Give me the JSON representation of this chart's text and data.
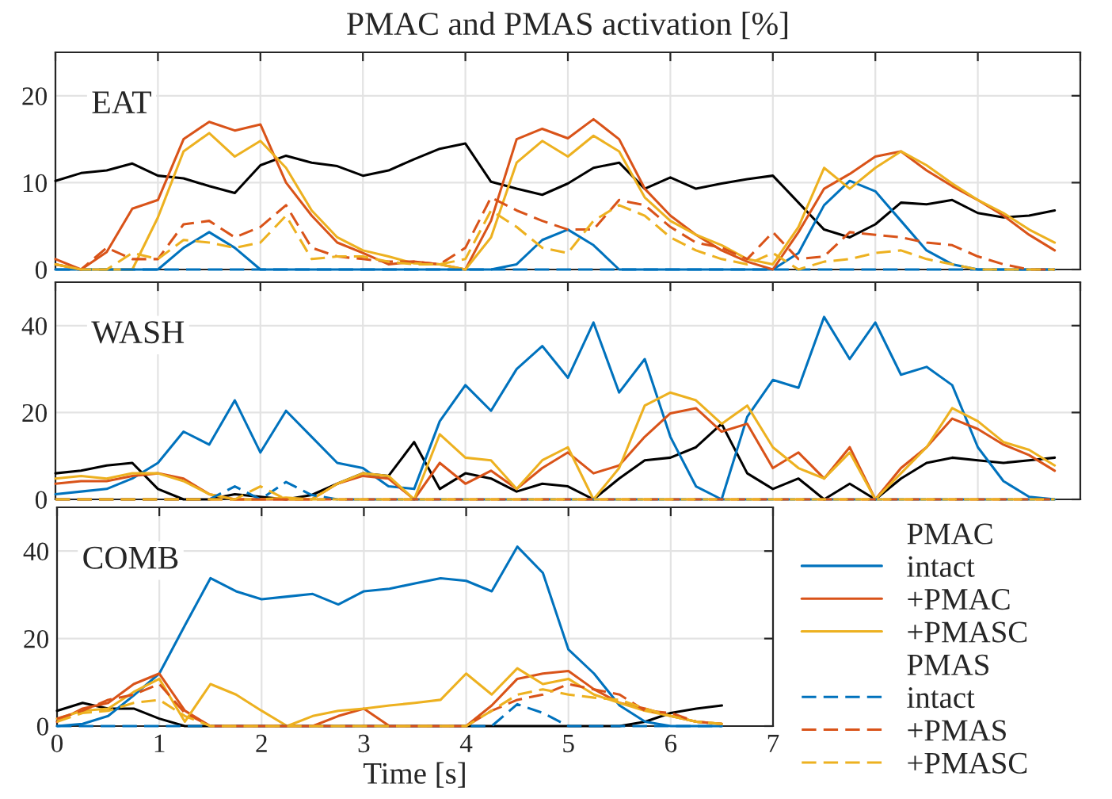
{
  "chart_data": [
    {
      "type": "line",
      "title": "PMAC and PMAS activation [%]",
      "annotations": [
        "EAT"
      ],
      "grid": true,
      "tick_labels": "y",
      "xlim": [
        0,
        10
      ],
      "xticks": [
        0,
        1,
        2,
        3,
        4,
        5,
        6,
        7,
        8,
        9,
        10
      ],
      "ylim": [
        0,
        25
      ],
      "yticks": [
        0,
        10,
        20
      ],
      "x": [
        0,
        0.25,
        0.5,
        0.75,
        1,
        1.25,
        1.5,
        1.75,
        2,
        2.25,
        2.5,
        2.75,
        3,
        3.25,
        3.5,
        3.75,
        4,
        4.25,
        4.5,
        4.75,
        5,
        5.25,
        5.5,
        5.75,
        6,
        6.25,
        6.5,
        6.75,
        7,
        7.25,
        7.5,
        7.75,
        8,
        8.25,
        8.5,
        8.75,
        9,
        9.25,
        9.5,
        9.75
      ],
      "series": [
        {
          "color": "#000000",
          "line_style": "solid",
          "values": [
            10.2,
            11.1,
            11.4,
            12.2,
            10.8,
            10.5,
            9.6,
            8.8,
            12,
            13.1,
            12.3,
            11.9,
            10.8,
            11.4,
            12.7,
            13.9,
            14.5,
            10.1,
            9.3,
            8.6,
            9.9,
            11.7,
            12.3,
            9.3,
            10.6,
            9.3,
            9.9,
            10.4,
            10.8,
            7.7,
            4.6,
            3.7,
            5.2,
            7.7,
            7.5,
            8,
            6.5,
            6,
            6.2,
            6.8
          ]
        },
        {
          "color": "#0072bd",
          "line_style": "solid",
          "values": [
            0,
            0,
            0,
            0,
            0,
            2.5,
            4.3,
            2.5,
            0,
            0,
            0,
            0,
            0,
            0,
            0,
            0,
            0,
            0,
            0.6,
            3.4,
            4.6,
            2.8,
            0,
            0,
            0,
            0,
            0,
            0,
            0,
            1.9,
            7.4,
            10.2,
            9,
            5.6,
            2.2,
            0.6,
            0,
            0,
            0,
            0
          ]
        },
        {
          "color": "#d95319",
          "line_style": "solid",
          "values": [
            1.2,
            0,
            2,
            7,
            8,
            15,
            17,
            16,
            16.7,
            10,
            6.2,
            3.1,
            1.9,
            0.6,
            0.9,
            0.6,
            0,
            5.6,
            15,
            16.2,
            15.1,
            17.3,
            15,
            9.3,
            6.2,
            4,
            2.2,
            0.9,
            0,
            4.3,
            9.3,
            11,
            13,
            13.6,
            11.4,
            9.6,
            8,
            6.2,
            4,
            2.2
          ]
        },
        {
          "color": "#edb120",
          "line_style": "solid",
          "values": [
            0.6,
            0,
            0,
            0,
            6,
            13.6,
            15.7,
            13,
            14.8,
            11.7,
            6.8,
            3.7,
            2.2,
            1.5,
            0.7,
            0.6,
            0,
            3.7,
            12.3,
            14.8,
            13,
            15.4,
            13.6,
            8.3,
            5.6,
            4,
            2.8,
            1.2,
            0.6,
            4.9,
            11.7,
            9.3,
            11.7,
            13.6,
            12,
            9.9,
            8,
            6.5,
            4.6,
            3.1
          ]
        },
        {
          "color": "#0072bd",
          "line_style": "dashed",
          "values": [
            0,
            0,
            0,
            0,
            0,
            0,
            0,
            0,
            0,
            0,
            0,
            0,
            0,
            0,
            0,
            0,
            0,
            0,
            0,
            0,
            0,
            0,
            0,
            0,
            0,
            0,
            0,
            0,
            0,
            0,
            0,
            0,
            0,
            0,
            0,
            0,
            0,
            0,
            0,
            0
          ]
        },
        {
          "color": "#d95319",
          "line_style": "dashed",
          "values": [
            0.6,
            0,
            2.5,
            1.2,
            1.2,
            5.2,
            5.6,
            3.7,
            4.9,
            7.4,
            2.5,
            1.5,
            1.2,
            0.9,
            0.9,
            0.6,
            2.5,
            8.3,
            6.8,
            5.6,
            4.6,
            4.6,
            8,
            7.4,
            4.9,
            3.1,
            2.5,
            1.2,
            4.3,
            1.2,
            1.5,
            4.3,
            4,
            3.7,
            3.1,
            2.8,
            1.5,
            0.6,
            0,
            0
          ]
        },
        {
          "color": "#edb120",
          "line_style": "dashed",
          "values": [
            0.6,
            0,
            0,
            1.9,
            1.2,
            3.4,
            3.1,
            2.5,
            3.1,
            6.2,
            1.2,
            1.5,
            1.5,
            0.9,
            0.6,
            0.6,
            1.2,
            6.8,
            4.9,
            2.5,
            1.9,
            5.6,
            7.4,
            6.2,
            3.7,
            2.2,
            1.2,
            0.6,
            1.9,
            0,
            0.9,
            1.2,
            1.9,
            2.2,
            1.2,
            0.6,
            0,
            0,
            0,
            0
          ]
        }
      ]
    },
    {
      "type": "line",
      "annotations": [
        "WASH"
      ],
      "grid": true,
      "tick_labels": "y",
      "xlim": [
        0,
        10
      ],
      "xticks": [
        0,
        1,
        2,
        3,
        4,
        5,
        6,
        7,
        8,
        9,
        10
      ],
      "ylim": [
        0,
        50
      ],
      "yticks": [
        0,
        20,
        40
      ],
      "x": [
        0,
        0.25,
        0.5,
        0.75,
        1,
        1.25,
        1.5,
        1.75,
        2,
        2.25,
        2.5,
        2.75,
        3,
        3.25,
        3.5,
        3.75,
        4,
        4.25,
        4.5,
        4.75,
        5,
        5.25,
        5.5,
        5.75,
        6,
        6.25,
        6.5,
        6.75,
        7,
        7.25,
        7.5,
        7.75,
        8,
        8.25,
        8.5,
        8.75,
        9,
        9.25,
        9.5,
        9.75
      ],
      "series": [
        {
          "color": "#000000",
          "line_style": "solid",
          "values": [
            6,
            6.6,
            7.8,
            8.4,
            2.4,
            0,
            0,
            1.2,
            0.6,
            0,
            1,
            3.6,
            6,
            5.4,
            13.2,
            2.4,
            6,
            4.8,
            1.8,
            3.6,
            3,
            0,
            4.8,
            9,
            9.6,
            12,
            17.4,
            6,
            2.4,
            4.8,
            0,
            3.6,
            0,
            4.8,
            8.4,
            9.6,
            9,
            8.4,
            9,
            9.6
          ]
        },
        {
          "color": "#0072bd",
          "line_style": "solid",
          "values": [
            1.2,
            1.8,
            2.4,
            4.8,
            8.4,
            15.6,
            12.6,
            22.8,
            10.8,
            20.4,
            14.4,
            8.4,
            7.2,
            3,
            2.4,
            18,
            26.3,
            20.4,
            30,
            35.3,
            28,
            40.7,
            24.6,
            32.3,
            14.4,
            3,
            0,
            19,
            27.5,
            25.7,
            42,
            32.3,
            40.7,
            28.7,
            30.5,
            26.3,
            12,
            4.2,
            0.6,
            0
          ]
        },
        {
          "color": "#d95319",
          "line_style": "solid",
          "values": [
            3.6,
            4.2,
            4.2,
            5.4,
            6,
            4.8,
            1.2,
            0,
            0,
            0,
            0,
            3.6,
            5.4,
            4.8,
            0,
            8.4,
            3.6,
            6.6,
            2.4,
            7.2,
            10.8,
            6,
            7.8,
            14.4,
            19.8,
            21,
            15.6,
            17.4,
            7.2,
            10.8,
            4.8,
            12,
            0,
            7.2,
            12,
            18.6,
            16.2,
            12.6,
            10.2,
            6.6
          ]
        },
        {
          "color": "#edb120",
          "line_style": "solid",
          "values": [
            4.8,
            5.4,
            4.8,
            6,
            6,
            4.2,
            1.2,
            0,
            0,
            0.4,
            0,
            3.6,
            6,
            5.4,
            0,
            15,
            9.6,
            9,
            2.4,
            9,
            12,
            0,
            7.2,
            21.6,
            24.6,
            22.8,
            17.4,
            21.6,
            12,
            7.2,
            4.8,
            10.8,
            0,
            6,
            12,
            21,
            18,
            13.2,
            11.4,
            7.8
          ]
        },
        {
          "color": "#0072bd",
          "line_style": "dashed",
          "values": [
            0,
            0,
            0,
            0,
            0,
            0,
            0,
            3,
            0,
            4,
            1,
            0,
            0,
            0,
            0,
            0,
            0,
            0,
            0,
            0,
            0,
            0,
            0,
            0,
            0,
            0,
            0,
            0,
            0,
            0,
            0,
            0,
            0,
            0,
            0,
            0,
            0,
            0,
            0,
            0
          ]
        },
        {
          "color": "#d95319",
          "line_style": "dashed",
          "values": [
            0,
            0,
            0,
            0,
            0,
            0,
            0,
            0,
            0,
            0,
            0,
            0,
            0,
            0,
            0,
            0,
            0,
            0,
            0,
            0,
            0,
            0,
            0,
            0,
            0,
            0,
            0,
            0,
            0,
            0,
            0,
            0,
            0,
            0,
            0,
            0,
            0,
            0,
            0,
            0
          ]
        },
        {
          "color": "#edb120",
          "line_style": "dashed",
          "values": [
            0,
            0,
            0,
            0,
            0,
            0,
            0,
            0,
            3,
            0,
            0,
            0,
            0,
            0,
            0,
            0,
            0,
            0,
            0,
            0,
            0,
            0,
            0,
            0,
            0,
            0,
            0,
            0,
            0,
            0,
            0,
            0,
            0,
            0,
            0,
            0,
            0,
            0,
            0,
            0
          ]
        }
      ]
    },
    {
      "type": "line",
      "annotations": [
        "COMB",
        "PMAC",
        "PMAS"
      ],
      "grid": true,
      "legend": "right",
      "xlabel": "Time [s]",
      "xlim": [
        0,
        7
      ],
      "xticks": [
        0,
        1,
        2,
        3,
        4,
        5,
        6,
        7
      ],
      "ylim": [
        0,
        50
      ],
      "yticks": [
        0,
        20,
        40
      ],
      "x": [
        0,
        0.25,
        0.5,
        0.75,
        1,
        1.25,
        1.5,
        1.75,
        2,
        2.25,
        2.5,
        2.75,
        3,
        3.25,
        3.5,
        3.75,
        4,
        4.25,
        4.5,
        4.75,
        5,
        5.25,
        5.5,
        5.75,
        6,
        6.25,
        6.5
      ],
      "series": [
        {
          "color": "#000000",
          "line_style": "solid",
          "values": [
            3.5,
            5.3,
            4,
            4,
            1.7,
            0,
            0,
            0,
            0,
            0,
            0,
            0,
            0,
            0,
            0,
            0,
            0,
            0,
            0,
            0,
            0,
            0,
            0,
            1,
            3,
            4,
            4.7
          ]
        },
        {
          "name": "intact",
          "color": "#0072bd",
          "line_style": "solid",
          "values": [
            0,
            0.5,
            2.3,
            7,
            12,
            23,
            33.8,
            30.8,
            29,
            29.6,
            30.2,
            27.8,
            30.8,
            31.4,
            32.6,
            33.8,
            33.2,
            30.8,
            41,
            35,
            17.5,
            12,
            4.7,
            1,
            0,
            0,
            0
          ]
        },
        {
          "name": "+PMAC",
          "color": "#d95319",
          "line_style": "solid",
          "values": [
            1,
            4,
            5.3,
            9.6,
            12,
            3.5,
            0,
            0,
            0,
            0,
            0,
            2.3,
            4,
            0,
            0,
            0,
            0,
            4.7,
            10.8,
            12,
            12.6,
            8.4,
            5.3,
            4,
            2.3,
            1,
            0.5
          ]
        },
        {
          "name": "+PMASC",
          "color": "#edb120",
          "line_style": "solid",
          "values": [
            1.7,
            3.5,
            4,
            7.8,
            10.8,
            1,
            9.6,
            7.2,
            3.5,
            0,
            2.3,
            3.5,
            4,
            4.7,
            5.3,
            6,
            12,
            7.2,
            13.2,
            9.6,
            10.8,
            7.2,
            5.3,
            3.5,
            2.3,
            1,
            0.5
          ]
        },
        {
          "name": "intact",
          "color": "#0072bd",
          "line_style": "dashed",
          "values": [
            0,
            0,
            0,
            0,
            0,
            0,
            0,
            0,
            0,
            0,
            0,
            0,
            0,
            0,
            0,
            0,
            0,
            0,
            5,
            3,
            0,
            0,
            0,
            0,
            0,
            0,
            0
          ]
        },
        {
          "name": "+PMAS",
          "color": "#d95319",
          "line_style": "dashed",
          "values": [
            1.7,
            3.5,
            6,
            7.2,
            9.6,
            3,
            0,
            0,
            0,
            0,
            0,
            0,
            0,
            0,
            0,
            0,
            0,
            3.5,
            6,
            7.2,
            9.6,
            8.4,
            7.2,
            3.5,
            3,
            1,
            0.5
          ]
        },
        {
          "name": "+PMASC",
          "color": "#edb120",
          "line_style": "dashed",
          "values": [
            1,
            3,
            3.5,
            5.3,
            6,
            2.3,
            0,
            0,
            0,
            0,
            0,
            0,
            0,
            0,
            0,
            0,
            0,
            3.5,
            7.2,
            8.4,
            7.2,
            6.5,
            6,
            4,
            2.3,
            1,
            0.5
          ]
        }
      ]
    }
  ]
}
